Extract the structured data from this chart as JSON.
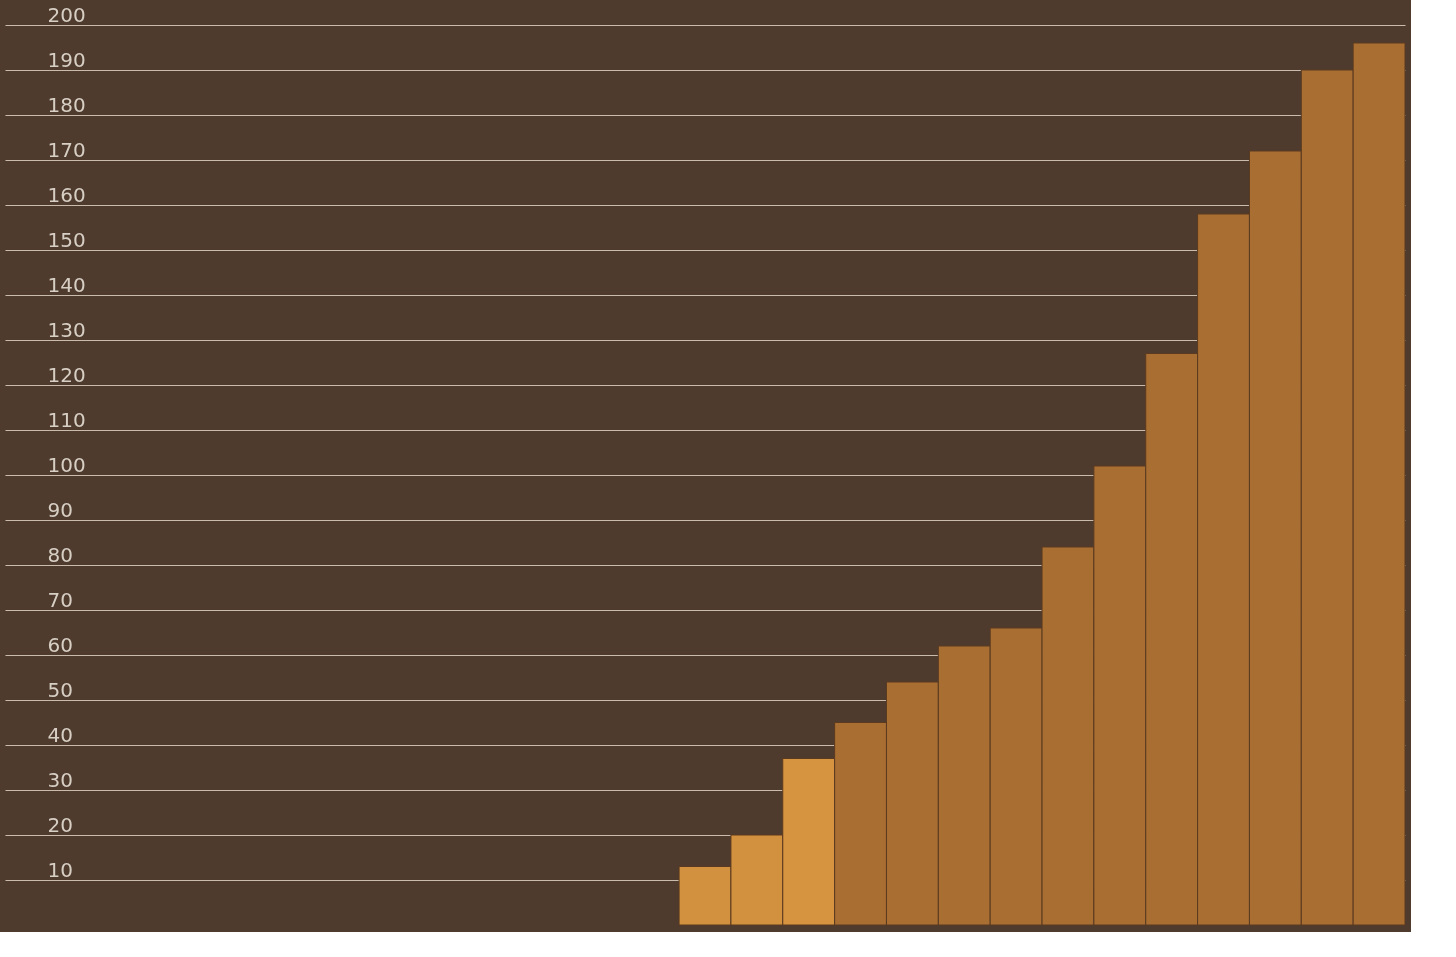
{
  "chart_data": {
    "type": "bar",
    "categories": [
      null,
      null,
      null,
      null,
      null,
      null,
      null,
      null,
      null,
      null,
      null,
      null,
      null,
      null,
      null,
      null,
      null,
      null,
      null,
      null,
      null,
      null,
      null,
      null,
      null,
      null,
      null
    ],
    "values": [
      null,
      null,
      null,
      null,
      null,
      null,
      null,
      null,
      null,
      null,
      null,
      null,
      null,
      13,
      20,
      37,
      45,
      54,
      62,
      66,
      84,
      102,
      127,
      158,
      172,
      190,
      196
    ],
    "colors": [
      "#a86e32",
      "#a86e32",
      "#a86e32",
      "#a86e32",
      "#a86e32",
      "#a86e32",
      "#a86e32",
      "#a86e32",
      "#a86e32",
      "#a86e32",
      "#a86e32",
      "#a86e32",
      "#a86e32",
      "#d2913f",
      "#d2913f",
      "#d69440",
      "#a86e32",
      "#a86e32",
      "#a86e32",
      "#a86e32",
      "#a86e32",
      "#a86e32",
      "#a86e32",
      "#a86e32",
      "#a86e32",
      "#a86e32",
      "#a86e32"
    ],
    "ylim": [
      0,
      200
    ],
    "yticks": [
      10,
      20,
      30,
      40,
      50,
      60,
      70,
      80,
      90,
      100,
      110,
      120,
      130,
      140,
      150,
      160,
      170,
      180,
      190,
      200
    ],
    "grid": "y"
  }
}
